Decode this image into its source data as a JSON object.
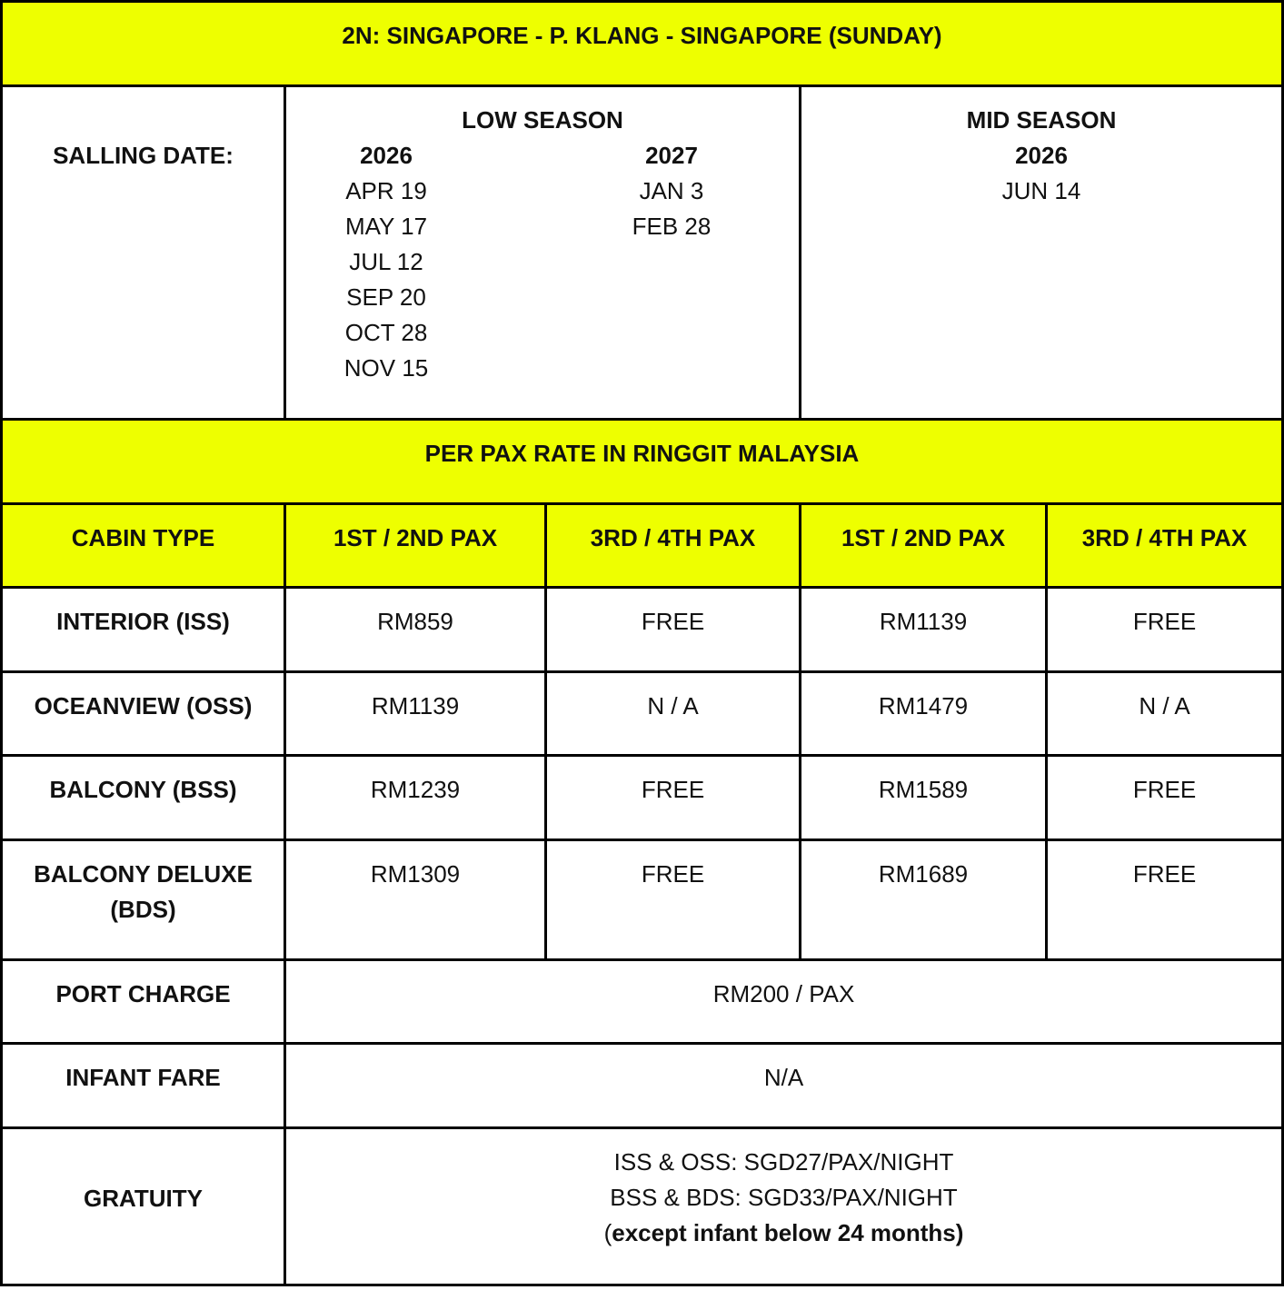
{
  "title": "2N: SINGAPORE - P. KLANG - SINGAPORE (SUNDAY)",
  "sailing": {
    "label": "SALLING DATE:",
    "low_season": {
      "label": "LOW SEASON",
      "years": [
        {
          "year": "2026",
          "dates": [
            "APR 19",
            "MAY 17",
            "JUL 12",
            "SEP 20",
            "OCT 28",
            "NOV 15"
          ]
        },
        {
          "year": "2027",
          "dates": [
            "JAN 3",
            "FEB 28"
          ]
        }
      ]
    },
    "mid_season": {
      "label": "MID SEASON",
      "years": [
        {
          "year": "2026",
          "dates": [
            "JUN 14"
          ]
        }
      ]
    }
  },
  "rate_heading": "PER PAX RATE IN RINGGIT MALAYSIA",
  "headers": [
    "CABIN TYPE",
    "1ST / 2ND PAX",
    "3RD / 4TH PAX",
    "1ST / 2ND PAX",
    "3RD / 4TH PAX"
  ],
  "rows": [
    {
      "cabin": "INTERIOR (ISS)",
      "values": [
        "RM859",
        "FREE",
        "RM1139",
        "FREE"
      ]
    },
    {
      "cabin": "OCEANVIEW (OSS)",
      "values": [
        "RM1139",
        "N / A",
        "RM1479",
        "N / A"
      ]
    },
    {
      "cabin": "BALCONY (BSS)",
      "values": [
        "RM1239",
        "FREE",
        "RM1589",
        "FREE"
      ]
    },
    {
      "cabin": "BALCONY DELUXE (BDS)",
      "values": [
        "RM1309",
        "FREE",
        "RM1689",
        "FREE"
      ]
    }
  ],
  "port_charge": {
    "label": "PORT CHARGE",
    "value": "RM200 / PAX"
  },
  "infant_fare": {
    "label": "INFANT FARE",
    "value": "N/A"
  },
  "gratuity": {
    "label": "GRATUITY",
    "lines": [
      "ISS & OSS: SGD27/PAX/NIGHT",
      "BSS & BDS: SGD33/PAX/NIGHT"
    ],
    "note_open": "(",
    "note": "except infant below 24 months)"
  },
  "colors": {
    "highlight": "#eeff00",
    "border": "#000000"
  }
}
